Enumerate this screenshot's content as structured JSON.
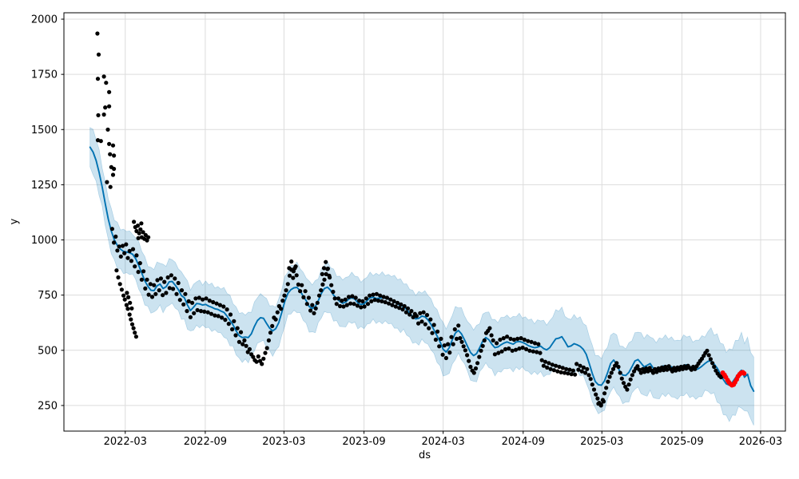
{
  "chart_data": {
    "type": "line",
    "subtype": "forecast_with_uncertainty_band_and_observations",
    "title": "",
    "xlabel": "ds",
    "ylabel": "y",
    "legend": "none",
    "grid": true,
    "x_unit": "days_since_2021-12-01",
    "x_range_t": [
      -51,
      1608
    ],
    "y_range": [
      134,
      2029
    ],
    "x_ticks": [
      {
        "label": "2022-03",
        "t": 90
      },
      {
        "label": "2022-09",
        "t": 274
      },
      {
        "label": "2023-03",
        "t": 455
      },
      {
        "label": "2023-09",
        "t": 639
      },
      {
        "label": "2024-03",
        "t": 821
      },
      {
        "label": "2024-09",
        "t": 1005
      },
      {
        "label": "2025-03",
        "t": 1186
      },
      {
        "label": "2025-09",
        "t": 1370
      },
      {
        "label": "2026-03",
        "t": 1551
      }
    ],
    "y_ticks": [
      250,
      500,
      750,
      1000,
      1250,
      1500,
      1750,
      2000
    ],
    "colors": {
      "forecast_line": "#0072B2",
      "uncertainty_band": "#0072B2",
      "uncertainty_band_opacity": 0.2,
      "observations": "#000000",
      "anomalies": "#ff0000",
      "grid": "#dcdcdc",
      "spine": "#000000",
      "text": "#000000"
    },
    "forecast": {
      "start_t": 9,
      "step_days": 7,
      "yhat": [
        1420,
        1398,
        1360,
        1305,
        1240,
        1165,
        1095,
        1040,
        1000,
        975,
        958,
        948,
        945,
        942,
        935,
        915,
        885,
        850,
        815,
        790,
        772,
        770,
        792,
        800,
        780,
        788,
        810,
        812,
        795,
        775,
        748,
        738,
        705,
        680,
        695,
        712,
        710,
        705,
        708,
        700,
        695,
        688,
        685,
        678,
        672,
        655,
        635,
        615,
        588,
        566,
        558,
        560,
        558,
        575,
        608,
        635,
        648,
        645,
        622,
        600,
        588,
        598,
        625,
        672,
        722,
        758,
        775,
        783,
        785,
        770,
        745,
        725,
        698,
        690,
        698,
        725,
        758,
        780,
        786,
        772,
        750,
        735,
        722,
        713,
        718,
        732,
        738,
        732,
        715,
        708,
        710,
        725,
        738,
        740,
        735,
        736,
        738,
        736,
        732,
        728,
        720,
        710,
        702,
        698,
        685,
        668,
        652,
        642,
        645,
        655,
        652,
        638,
        618,
        592,
        565,
        538,
        505,
        492,
        512,
        548,
        578,
        590,
        575,
        548,
        518,
        490,
        476,
        485,
        512,
        542,
        558,
        548,
        528,
        512,
        515,
        525,
        533,
        538,
        532,
        528,
        538,
        540,
        536,
        530,
        521,
        516,
        512,
        514,
        519,
        508,
        502,
        512,
        532,
        552,
        555,
        562,
        540,
        516,
        520,
        530,
        525,
        518,
        505,
        482,
        440,
        395,
        358,
        344,
        342,
        362,
        398,
        440,
        456,
        438,
        405,
        388,
        386,
        400,
        425,
        452,
        458,
        442,
        425,
        432,
        440,
        420,
        408,
        418,
        428,
        430,
        428,
        425,
        415,
        412,
        420,
        432,
        434,
        425,
        415,
        412,
        418,
        428,
        440,
        450,
        452,
        438,
        420,
        395,
        368,
        348,
        342,
        355,
        375,
        395,
        410,
        378,
        392,
        340,
        315
      ],
      "band_halfwidth": [
        89,
        103,
        93,
        105,
        85,
        99,
        91,
        103,
        89,
        105,
        87,
        101,
        93,
        99,
        89,
        94,
        108,
        98,
        110,
        90,
        104,
        96,
        108,
        94,
        110,
        92,
        106,
        98,
        104,
        94,
        108,
        96,
        110,
        92,
        104,
        98,
        108,
        90,
        106,
        96,
        110,
        94,
        104,
        99,
        113,
        103,
        115,
        95,
        109,
        101,
        113,
        99,
        115,
        97,
        111,
        103,
        109,
        99,
        113,
        101,
        115,
        97,
        109,
        103,
        113,
        95,
        111,
        101,
        115,
        99,
        109,
        102,
        116,
        106,
        118,
        98,
        112,
        104,
        116,
        102,
        118,
        100,
        114,
        106,
        112,
        102,
        116,
        104,
        118,
        100,
        112,
        106,
        116,
        98,
        114,
        104,
        118,
        102,
        112,
        106,
        120,
        110,
        122,
        102,
        116,
        108,
        120,
        106,
        122,
        104,
        118,
        110,
        116,
        106,
        120,
        108,
        122,
        104,
        116,
        110,
        120,
        102,
        118,
        108,
        112,
        126,
        116,
        128,
        108,
        122,
        114,
        126,
        112,
        128,
        110,
        124,
        116,
        122,
        112,
        126,
        114,
        128,
        110,
        122,
        116,
        126,
        108,
        124,
        114,
        128,
        112,
        122,
        118,
        132,
        122,
        134,
        114,
        128,
        120,
        132,
        118,
        134,
        116,
        130,
        122,
        128,
        118,
        132,
        120,
        134,
        116,
        128,
        122,
        132,
        114,
        130,
        120,
        134,
        118,
        128,
        124,
        138,
        128,
        140,
        120,
        134,
        126,
        138,
        124,
        140,
        122,
        136,
        128,
        134,
        124,
        138,
        126,
        140,
        122,
        134,
        128,
        138,
        120,
        135,
        150,
        130,
        155,
        138,
        160,
        142,
        165,
        148,
        170,
        150,
        172,
        152,
        168,
        150,
        155
      ]
    },
    "observations": {
      "start_t": 60,
      "step_days": 4,
      "marker_radius": 2.6,
      "values": [
        1050,
        988,
        1015,
        952,
        970,
        925,
        973,
        940,
        980,
        918,
        950,
        905,
        958,
        880,
        930,
        855,
        895,
        820,
        858,
        780,
        820,
        752,
        800,
        742,
        795,
        755,
        818,
        772,
        825,
        750,
        810,
        760,
        830,
        782,
        840,
        778,
        825,
        755,
        805,
        728,
        772,
        708,
        755,
        678,
        722,
        650,
        715,
        668,
        735,
        682,
        738,
        678,
        730,
        675,
        735,
        672,
        725,
        665,
        718,
        658,
        712,
        655,
        705,
        648,
        698,
        638,
        685,
        620,
        662,
        595,
        632,
        568,
        600,
        538,
        582,
        528,
        545,
        520,
        492,
        505,
        482,
        470,
        455,
        448,
        472,
        452,
        438,
        462,
        488,
        510,
        545,
        580,
        610,
        648,
        640,
        672,
        700,
        688,
        725,
        748,
        772,
        800,
        838,
        865,
        828,
        872,
        840,
        798,
        768,
        795,
        740,
        768,
        710,
        738,
        680,
        705,
        668,
        690,
        715,
        748,
        772,
        798,
        820,
        845,
        870,
        830,
        795,
        765,
        735,
        710,
        735,
        700,
        725,
        698,
        730,
        705,
        742,
        712,
        745,
        710,
        738,
        702,
        725,
        695,
        722,
        698,
        735,
        710,
        748,
        722,
        752,
        728,
        755,
        725,
        748,
        722,
        742,
        718,
        738,
        712,
        730,
        705,
        722,
        698,
        715,
        692,
        708,
        685,
        700,
        672,
        690,
        662,
        678,
        650,
        665,
        655,
        622,
        668,
        630,
        672,
        618,
        660,
        600,
        640,
        578,
        615,
        548,
        585,
        518,
        552,
        480,
        522,
        465,
        528,
        490,
        560,
        528,
        595,
        552,
        612,
        555,
        538,
        518,
        500,
        478,
        452,
        425,
        408,
        398,
        418,
        442,
        470,
        498,
        520,
        545,
        578,
        588,
        600,
        568,
        545,
        482,
        532,
        488,
        548,
        495,
        555,
        505,
        562,
        508,
        552,
        498,
        548,
        502,
        552,
        508,
        555,
        512,
        548,
        505,
        542,
        498,
        538,
        495,
        532,
        492,
        528,
        488,
        455,
        430,
        448,
        422,
        442,
        415,
        435,
        410,
        430,
        405,
        425,
        400,
        420,
        398,
        415,
        395,
        412,
        392,
        408,
        390,
        438,
        412,
        430,
        405,
        422,
        398,
        415,
        388,
        370,
        345,
        322,
        300,
        282,
        262,
        255,
        275,
        305,
        330,
        358,
        380,
        398,
        415,
        430,
        442,
        425,
        398,
        372,
        352,
        335,
        322,
        345,
        368,
        388,
        405,
        418,
        428,
        412,
        398,
        415,
        402,
        418,
        405,
        420,
        408,
        398,
        415,
        402,
        418,
        408,
        422,
        410,
        425,
        412,
        428,
        415,
        405,
        420,
        408,
        422,
        412,
        425,
        415,
        428,
        418,
        430,
        420,
        412,
        425,
        415,
        428,
        440,
        452,
        462,
        475,
        488,
        498,
        478,
        460,
        442,
        425,
        408,
        395,
        385,
        378,
        385
      ]
    },
    "extra_observations": [
      [
        26,
        1935
      ],
      [
        29,
        1840
      ],
      [
        27,
        1730
      ],
      [
        41,
        1740
      ],
      [
        46,
        1712
      ],
      [
        53,
        1670
      ],
      [
        44,
        1600
      ],
      [
        53,
        1605
      ],
      [
        28,
        1565
      ],
      [
        41,
        1568
      ],
      [
        50,
        1500
      ],
      [
        27,
        1452
      ],
      [
        34,
        1448
      ],
      [
        53,
        1435
      ],
      [
        62,
        1428
      ],
      [
        55,
        1388
      ],
      [
        64,
        1382
      ],
      [
        58,
        1330
      ],
      [
        64,
        1322
      ],
      [
        62,
        1295
      ],
      [
        48,
        1262
      ],
      [
        56,
        1240
      ],
      [
        70,
        862
      ],
      [
        74,
        830
      ],
      [
        78,
        800
      ],
      [
        82,
        775
      ],
      [
        86,
        748
      ],
      [
        89,
        730
      ],
      [
        93,
        705
      ],
      [
        96,
        688
      ],
      [
        100,
        662
      ],
      [
        103,
        640
      ],
      [
        106,
        618
      ],
      [
        109,
        600
      ],
      [
        112,
        580
      ],
      [
        115,
        562
      ],
      [
        105,
        690
      ],
      [
        101,
        715
      ],
      [
        97,
        740
      ],
      [
        94,
        760
      ],
      [
        110,
        1082
      ],
      [
        113,
        1058
      ],
      [
        116,
        1040
      ],
      [
        119,
        1065
      ],
      [
        122,
        1030
      ],
      [
        125,
        1048
      ],
      [
        128,
        1012
      ],
      [
        131,
        1035
      ],
      [
        134,
        1005
      ],
      [
        137,
        1022
      ],
      [
        140,
        998
      ],
      [
        143,
        1012
      ],
      [
        120,
        1008
      ],
      [
        127,
        1075
      ],
      [
        467,
        872
      ],
      [
        472,
        902
      ],
      [
        477,
        858
      ],
      [
        482,
        880
      ],
      [
        543,
        845
      ],
      [
        547,
        872
      ],
      [
        551,
        900
      ],
      [
        555,
        868
      ],
      [
        559,
        838
      ],
      [
        1178,
        258
      ],
      [
        1184,
        250
      ],
      [
        1190,
        268
      ]
    ],
    "anomalies": {
      "marker_radius": 3,
      "points": [
        [
          1464,
          398
        ],
        [
          1468,
          388
        ],
        [
          1471,
          378
        ],
        [
          1475,
          365
        ],
        [
          1478,
          355
        ],
        [
          1482,
          347
        ],
        [
          1485,
          342
        ],
        [
          1489,
          345
        ],
        [
          1492,
          355
        ],
        [
          1496,
          368
        ],
        [
          1499,
          382
        ],
        [
          1503,
          392
        ],
        [
          1506,
          398
        ],
        [
          1510,
          400
        ],
        [
          1513,
          395
        ]
      ]
    }
  }
}
